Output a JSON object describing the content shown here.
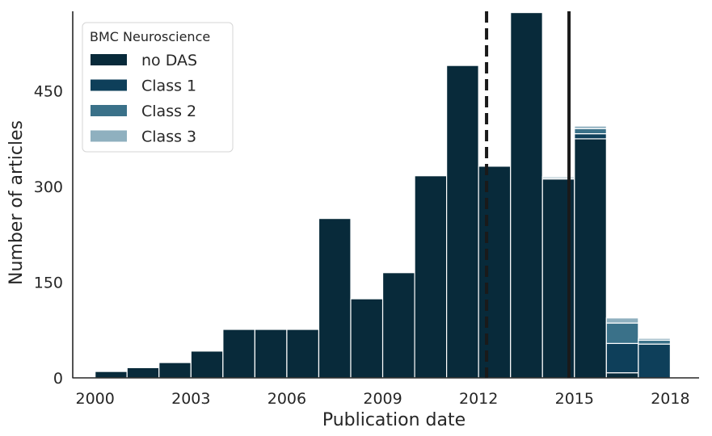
{
  "chart_data": {
    "type": "bar",
    "stacked": true,
    "xlabel": "Publication date",
    "ylabel": "Number of articles",
    "xlim": [
      1999.3,
      2018.9
    ],
    "ylim": [
      0,
      575
    ],
    "x_ticks": [
      2000,
      2003,
      2006,
      2009,
      2012,
      2015,
      2018
    ],
    "y_ticks": [
      0,
      150,
      300,
      450
    ],
    "bins": [
      [
        2000,
        2001
      ],
      [
        2001,
        2002
      ],
      [
        2002,
        2003
      ],
      [
        2003,
        2004
      ],
      [
        2004,
        2005
      ],
      [
        2005,
        2006
      ],
      [
        2006,
        2007
      ],
      [
        2007,
        2008
      ],
      [
        2008,
        2009
      ],
      [
        2009,
        2010
      ],
      [
        2010,
        2011
      ],
      [
        2011,
        2012
      ],
      [
        2012,
        2013
      ],
      [
        2013,
        2014
      ],
      [
        2014,
        2015
      ],
      [
        2015,
        2016
      ],
      [
        2016,
        2017
      ],
      [
        2017,
        2018
      ]
    ],
    "legend": {
      "title": "BMC Neuroscience",
      "position": "top-left"
    },
    "series": [
      {
        "name": "no DAS",
        "color": "#082a3a",
        "values": [
          10,
          16,
          24,
          42,
          76,
          76,
          76,
          250,
          124,
          165,
          317,
          490,
          332,
          573,
          312,
          375,
          8,
          0
        ]
      },
      {
        "name": "Class 1",
        "color": "#0e3f5a",
        "values": [
          0,
          0,
          0,
          0,
          0,
          0,
          0,
          0,
          0,
          0,
          0,
          0,
          0,
          0,
          0,
          8,
          46,
          53
        ]
      },
      {
        "name": "Class 2",
        "color": "#3a7189",
        "values": [
          0,
          0,
          0,
          0,
          0,
          0,
          0,
          0,
          0,
          0,
          0,
          0,
          0,
          0,
          2,
          8,
          32,
          6
        ]
      },
      {
        "name": "Class 3",
        "color": "#8fb0bf",
        "values": [
          0,
          0,
          0,
          0,
          0,
          0,
          0,
          0,
          0,
          0,
          0,
          0,
          0,
          0,
          2,
          4,
          8,
          3
        ]
      }
    ],
    "vlines": [
      {
        "x": 2012.25,
        "style": "dashed",
        "color": "#1a1a1a"
      },
      {
        "x": 2014.83,
        "style": "solid",
        "color": "#1a1a1a"
      }
    ],
    "grid": false
  }
}
